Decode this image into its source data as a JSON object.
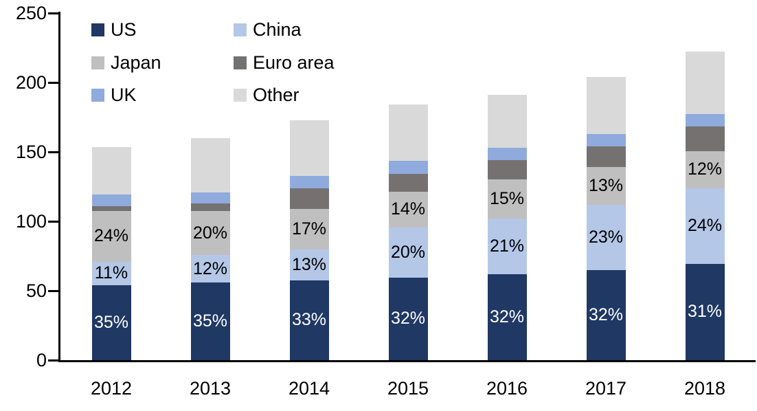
{
  "chart_data": {
    "type": "bar",
    "stacked": true,
    "title": "",
    "xlabel": "",
    "ylabel": "",
    "ylim": [
      0,
      250
    ],
    "yticks": [
      0,
      50,
      100,
      150,
      200,
      250
    ],
    "grid": false,
    "categories": [
      "2012",
      "2013",
      "2014",
      "2015",
      "2016",
      "2017",
      "2018"
    ],
    "series": [
      {
        "name": "US",
        "key": "us",
        "color": "#1f3864",
        "label_color": "#ffffff",
        "values": [
          54,
          56,
          57.5,
          59.5,
          62,
          65,
          69.5
        ],
        "labels": [
          "35%",
          "35%",
          "33%",
          "32%",
          "32%",
          "32%",
          "31%"
        ]
      },
      {
        "name": "China",
        "key": "china",
        "color": "#b4c7e7",
        "label_color": "#000000",
        "values": [
          17,
          19.5,
          22,
          36,
          40,
          47,
          54.5
        ],
        "labels": [
          "11%",
          "12%",
          "13%",
          "20%",
          "21%",
          "23%",
          "24%"
        ]
      },
      {
        "name": "Japan",
        "key": "japan",
        "color": "#bfbfbf",
        "label_color": "#000000",
        "values": [
          36.5,
          32,
          29.5,
          26,
          28,
          27,
          26.5
        ],
        "labels": [
          "24%",
          "20%",
          "17%",
          "14%",
          "15%",
          "13%",
          "12%"
        ]
      },
      {
        "name": "Euro area",
        "key": "euro-area",
        "color": "#767171",
        "label_color": "#000000",
        "values": [
          3.5,
          5.5,
          15,
          12.5,
          14,
          15,
          18
        ],
        "labels": null
      },
      {
        "name": "UK",
        "key": "uk",
        "color": "#8faadc",
        "label_color": "#000000",
        "values": [
          8.5,
          8,
          8.5,
          9.5,
          9,
          9,
          8.5
        ],
        "labels": null
      },
      {
        "name": "Other",
        "key": "other",
        "color": "#d9d9d9",
        "label_color": "#000000",
        "values": [
          34,
          39,
          40.5,
          40.5,
          38,
          41,
          45.5
        ],
        "labels": null
      }
    ],
    "totals": [
      153.5,
      160,
      173,
      184,
      191,
      204,
      222.5
    ],
    "legend_position": "top-left-inside",
    "legend_columns": [
      [
        "US",
        "Japan",
        "UK"
      ],
      [
        "China",
        "Euro area",
        "Other"
      ]
    ],
    "axis_color": "#000000",
    "background_color": "#ffffff"
  }
}
